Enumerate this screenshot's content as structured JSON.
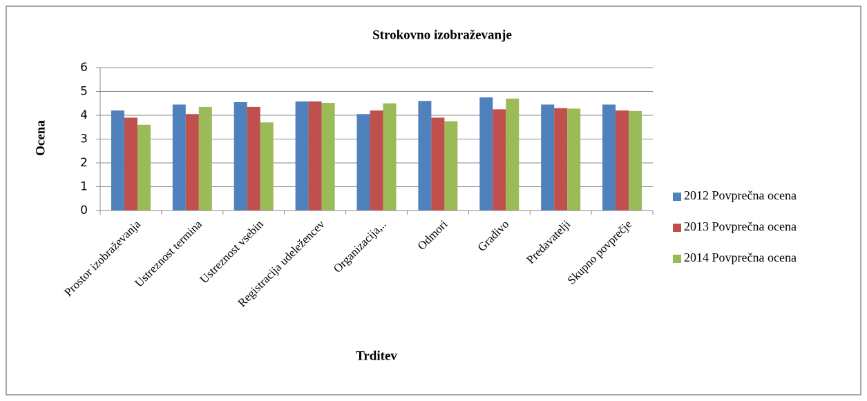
{
  "chart_data": {
    "type": "bar",
    "title": "Strokovno izobraževanje",
    "x_label": "Trditev",
    "y_label": "Ocena",
    "categories": [
      "Prostor izobraževanja",
      "Ustreznost termina",
      "Ustreznost vsebin",
      "Registracija udeležencev",
      "Organizacija,..",
      "Odmori",
      "Gradivo",
      "Predavatelji",
      "Skupno povprečje"
    ],
    "series": [
      {
        "name": "2012 Povprečna ocena",
        "color": "#4f81bd",
        "values": [
          4.2,
          4.45,
          4.55,
          4.58,
          4.05,
          4.6,
          4.75,
          4.45,
          4.45
        ]
      },
      {
        "name": "2013 Povprečna ocena",
        "color": "#c0504d",
        "values": [
          3.9,
          4.05,
          4.35,
          4.58,
          4.2,
          3.9,
          4.25,
          4.3,
          4.2
        ]
      },
      {
        "name": "2014 Povprečna ocena",
        "color": "#9bbb59",
        "values": [
          3.6,
          4.35,
          3.7,
          4.52,
          4.5,
          3.75,
          4.7,
          4.28,
          4.18
        ]
      }
    ],
    "ylim": [
      0,
      6
    ],
    "yticks": [
      0,
      1,
      2,
      3,
      4,
      5,
      6
    ],
    "grid": true,
    "legend": "right"
  }
}
